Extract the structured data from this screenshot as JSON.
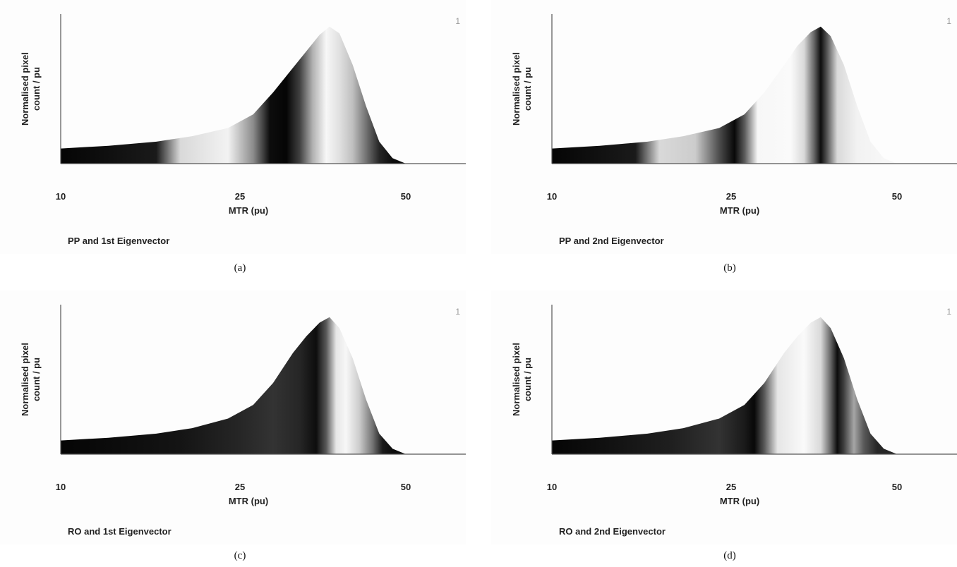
{
  "chart_data": [
    {
      "type": "area",
      "panel": "a",
      "title": "PP and 1st Eigenvector",
      "caption": "(a)",
      "corner_mark": "1",
      "xlabel": "MTR (pu)",
      "ylabel_lines": [
        "Normalised pixel",
        "count / pu"
      ],
      "xticks": [
        10,
        25,
        50
      ],
      "xlim": [
        10,
        60
      ],
      "ylim": [
        0,
        1.05
      ],
      "x": [
        10,
        14,
        18,
        21,
        24,
        27,
        30,
        33,
        35,
        37,
        38.5,
        40,
        42,
        44,
        46,
        48,
        50,
        60
      ],
      "y": [
        0.11,
        0.13,
        0.16,
        0.2,
        0.26,
        0.36,
        0.52,
        0.7,
        0.82,
        0.94,
        1.0,
        0.95,
        0.72,
        0.42,
        0.16,
        0.04,
        0.0,
        0.0
      ],
      "shading": [
        {
          "x": 10,
          "v": 0.02
        },
        {
          "x": 18,
          "v": 0.1
        },
        {
          "x": 20,
          "v": 0.85
        },
        {
          "x": 24,
          "v": 0.95
        },
        {
          "x": 27,
          "v": 0.55
        },
        {
          "x": 29.5,
          "v": 0.05
        },
        {
          "x": 32,
          "v": 0.02
        },
        {
          "x": 34,
          "v": 0.25
        },
        {
          "x": 36,
          "v": 0.7
        },
        {
          "x": 38,
          "v": 0.97
        },
        {
          "x": 40,
          "v": 0.88
        },
        {
          "x": 42,
          "v": 0.75
        },
        {
          "x": 44,
          "v": 0.45
        },
        {
          "x": 46,
          "v": 0.15
        },
        {
          "x": 48,
          "v": 0.05
        }
      ]
    },
    {
      "type": "area",
      "panel": "b",
      "title": "PP and 2nd Eigenvector",
      "caption": "(b)",
      "corner_mark": "1",
      "xlabel": "MTR (pu)",
      "ylabel_lines": [
        "Normalised pixel",
        "count / pu"
      ],
      "xticks": [
        10,
        25,
        50
      ],
      "xlim": [
        10,
        60
      ],
      "ylim": [
        0,
        1.05
      ],
      "x": [
        10,
        14,
        18,
        21,
        24,
        27,
        30,
        33,
        35,
        37,
        38.5,
        40,
        42,
        44,
        46,
        48,
        50,
        60
      ],
      "y": [
        0.11,
        0.13,
        0.16,
        0.2,
        0.26,
        0.36,
        0.52,
        0.72,
        0.86,
        0.96,
        1.0,
        0.93,
        0.72,
        0.42,
        0.16,
        0.04,
        0.0,
        0.0
      ],
      "shading": [
        {
          "x": 10,
          "v": 0.02
        },
        {
          "x": 17,
          "v": 0.1
        },
        {
          "x": 19,
          "v": 0.85
        },
        {
          "x": 22,
          "v": 0.8
        },
        {
          "x": 24,
          "v": 0.3
        },
        {
          "x": 25.5,
          "v": 0.03
        },
        {
          "x": 27,
          "v": 0.35
        },
        {
          "x": 29,
          "v": 0.97
        },
        {
          "x": 34,
          "v": 0.98
        },
        {
          "x": 36,
          "v": 0.85
        },
        {
          "x": 37.5,
          "v": 0.4
        },
        {
          "x": 38.5,
          "v": 0.05
        },
        {
          "x": 39.5,
          "v": 0.35
        },
        {
          "x": 41,
          "v": 0.85
        },
        {
          "x": 44,
          "v": 0.95
        },
        {
          "x": 48,
          "v": 0.97
        }
      ]
    },
    {
      "type": "area",
      "panel": "c",
      "title": "RO and  1st Eigenvector",
      "caption": "(c)",
      "corner_mark": "1",
      "xlabel": "MTR (pu)",
      "ylabel_lines": [
        "Normalised pixel",
        "count / pu"
      ],
      "xticks": [
        10,
        25,
        50
      ],
      "xlim": [
        10,
        60
      ],
      "ylim": [
        0,
        1.05
      ],
      "x": [
        10,
        14,
        18,
        21,
        24,
        27,
        30,
        33,
        35,
        37,
        38.5,
        40,
        42,
        44,
        46,
        48,
        50,
        60
      ],
      "y": [
        0.1,
        0.12,
        0.15,
        0.19,
        0.26,
        0.36,
        0.52,
        0.74,
        0.86,
        0.96,
        1.0,
        0.92,
        0.7,
        0.4,
        0.15,
        0.04,
        0.0,
        0.0
      ],
      "shading": [
        {
          "x": 10,
          "v": 0.02
        },
        {
          "x": 20,
          "v": 0.08
        },
        {
          "x": 25,
          "v": 0.15
        },
        {
          "x": 30,
          "v": 0.2
        },
        {
          "x": 34,
          "v": 0.15
        },
        {
          "x": 36.5,
          "v": 0.05
        },
        {
          "x": 38,
          "v": 0.35
        },
        {
          "x": 39.5,
          "v": 0.9
        },
        {
          "x": 41,
          "v": 0.97
        },
        {
          "x": 43,
          "v": 0.8
        },
        {
          "x": 45,
          "v": 0.45
        },
        {
          "x": 46.5,
          "v": 0.1
        },
        {
          "x": 48,
          "v": 0.05
        }
      ]
    },
    {
      "type": "area",
      "panel": "d",
      "title": "RO and  2nd Eigenvector",
      "caption": "(d)",
      "corner_mark": "1",
      "xlabel": "MTR (pu)",
      "ylabel_lines": [
        "Normalised pixel",
        "count / pu"
      ],
      "xticks": [
        10,
        25,
        50
      ],
      "xlim": [
        10,
        60
      ],
      "ylim": [
        0,
        1.05
      ],
      "x": [
        10,
        14,
        18,
        21,
        24,
        27,
        30,
        33,
        35,
        37,
        38.5,
        40,
        42,
        44,
        46,
        48,
        50,
        60
      ],
      "y": [
        0.1,
        0.12,
        0.15,
        0.19,
        0.26,
        0.36,
        0.52,
        0.74,
        0.86,
        0.96,
        1.0,
        0.92,
        0.7,
        0.4,
        0.15,
        0.04,
        0.0,
        0.0
      ],
      "shading": [
        {
          "x": 10,
          "v": 0.02
        },
        {
          "x": 20,
          "v": 0.12
        },
        {
          "x": 24,
          "v": 0.2
        },
        {
          "x": 27,
          "v": 0.1
        },
        {
          "x": 28.5,
          "v": 0.03
        },
        {
          "x": 30,
          "v": 0.35
        },
        {
          "x": 32,
          "v": 0.9
        },
        {
          "x": 36,
          "v": 0.98
        },
        {
          "x": 38.5,
          "v": 0.85
        },
        {
          "x": 40,
          "v": 0.4
        },
        {
          "x": 41,
          "v": 0.05
        },
        {
          "x": 42,
          "v": 0.25
        },
        {
          "x": 43.5,
          "v": 0.65
        },
        {
          "x": 45,
          "v": 0.35
        },
        {
          "x": 47,
          "v": 0.15
        }
      ]
    }
  ]
}
